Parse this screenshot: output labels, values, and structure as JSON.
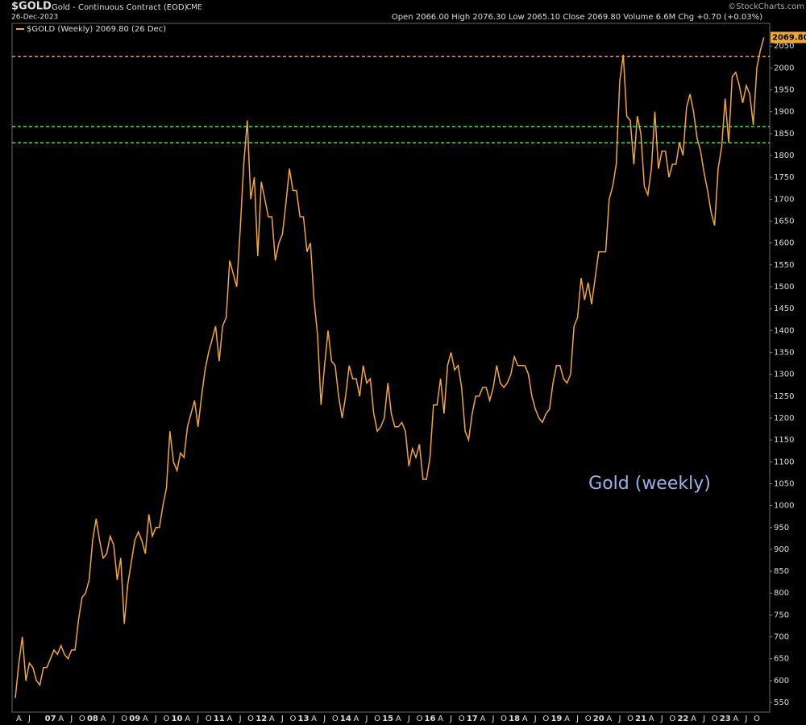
{
  "chart_data": {
    "type": "line",
    "header": {
      "symbol": "$GOLD",
      "name": "Gold - Continuous Contract (EOD)",
      "exchange": "CME",
      "date": "26-Dec-2023",
      "quote": "Open 2066.00  High 2076.30  Low 2065.10  Close 2069.80  Volume 6.6M  Chg +0.70 (+0.03%)",
      "source": "©StockCharts.com"
    },
    "legend_label": "$GOLD (Weekly) 2069.80 (26 Dec)",
    "annotation": "Gold (weekly)",
    "last_value_label": "2069.80",
    "categories": [
      null,
      "A",
      null,
      null,
      "J",
      null,
      null,
      null,
      null,
      null,
      "07",
      null,
      null,
      "A",
      null,
      null,
      "J",
      null,
      null,
      "O",
      null,
      null,
      "08",
      null,
      null,
      "A",
      null,
      null,
      "J",
      null,
      null,
      "O",
      null,
      null,
      "09",
      null,
      null,
      "A",
      null,
      null,
      "J",
      null,
      null,
      "O",
      null,
      null,
      "10",
      null,
      null,
      "A",
      null,
      null,
      "J",
      null,
      null,
      "O",
      null,
      null,
      "11",
      null,
      null,
      "A",
      null,
      null,
      "J",
      null,
      null,
      "O",
      null,
      null,
      "12",
      null,
      null,
      "A",
      null,
      null,
      "J",
      null,
      null,
      "O",
      null,
      null,
      "13",
      null,
      null,
      "A",
      null,
      null,
      "J",
      null,
      null,
      "O",
      null,
      null,
      "14",
      null,
      null,
      "A",
      null,
      null,
      "J",
      null,
      null,
      "O",
      null,
      null,
      "15",
      null,
      null,
      "A",
      null,
      null,
      "J",
      null,
      null,
      "O",
      null,
      null,
      "16",
      null,
      null,
      "A",
      null,
      null,
      "J",
      null,
      null,
      "O",
      null,
      null,
      "17",
      null,
      null,
      "A",
      null,
      null,
      "J",
      null,
      null,
      "O",
      null,
      null,
      "18",
      null,
      null,
      "A",
      null,
      null,
      "J",
      null,
      null,
      "O",
      null,
      null,
      "19",
      null,
      null,
      "A",
      null,
      null,
      "J",
      null,
      null,
      "O",
      null,
      null,
      "20",
      null,
      null,
      "A",
      null,
      null,
      "J",
      null,
      null,
      "O",
      null,
      null,
      "21",
      null,
      null,
      "A",
      null,
      null,
      "J",
      null,
      null,
      "O",
      null,
      null,
      "22",
      null,
      null,
      "A",
      null,
      null,
      "J",
      null,
      null,
      "O",
      null,
      null,
      "23",
      null,
      null,
      "A",
      null,
      null,
      "J",
      null,
      null,
      "O",
      null,
      null
    ],
    "series": [
      {
        "name": "$GOLD",
        "color": "#f0a830",
        "values": [
          560,
          640,
          700,
          600,
          640,
          630,
          600,
          590,
          630,
          630,
          650,
          670,
          660,
          680,
          660,
          650,
          670,
          670,
          740,
          790,
          800,
          830,
          920,
          970,
          920,
          880,
          890,
          930,
          910,
          830,
          880,
          730,
          820,
          870,
          920,
          940,
          920,
          890,
          980,
          930,
          950,
          950,
          1000,
          1040,
          1170,
          1100,
          1080,
          1120,
          1110,
          1180,
          1210,
          1240,
          1180,
          1250,
          1310,
          1350,
          1380,
          1410,
          1330,
          1410,
          1430,
          1560,
          1530,
          1500,
          1630,
          1780,
          1880,
          1700,
          1750,
          1570,
          1740,
          1700,
          1660,
          1660,
          1560,
          1600,
          1620,
          1690,
          1770,
          1720,
          1720,
          1660,
          1660,
          1580,
          1600,
          1470,
          1390,
          1230,
          1320,
          1400,
          1330,
          1320,
          1250,
          1200,
          1250,
          1320,
          1290,
          1290,
          1250,
          1320,
          1280,
          1290,
          1210,
          1170,
          1180,
          1200,
          1280,
          1210,
          1180,
          1180,
          1190,
          1170,
          1090,
          1130,
          1110,
          1140,
          1060,
          1060,
          1110,
          1230,
          1230,
          1290,
          1210,
          1320,
          1350,
          1310,
          1320,
          1270,
          1170,
          1150,
          1210,
          1250,
          1250,
          1270,
          1270,
          1240,
          1270,
          1320,
          1280,
          1270,
          1280,
          1300,
          1340,
          1320,
          1320,
          1320,
          1300,
          1250,
          1220,
          1200,
          1190,
          1210,
          1220,
          1280,
          1320,
          1320,
          1290,
          1280,
          1300,
          1410,
          1430,
          1520,
          1470,
          1510,
          1460,
          1520,
          1580,
          1580,
          1580,
          1700,
          1730,
          1780,
          1970,
          2030,
          1890,
          1880,
          1780,
          1890,
          1850,
          1730,
          1710,
          1770,
          1900,
          1770,
          1810,
          1810,
          1750,
          1780,
          1780,
          1830,
          1800,
          1910,
          1940,
          1900,
          1840,
          1810,
          1760,
          1720,
          1670,
          1640,
          1770,
          1820,
          1930,
          1830,
          1980,
          1990,
          1960,
          1920,
          1960,
          1940,
          1870,
          2000,
          2040,
          2069.8
        ]
      }
    ],
    "reference_lines": [
      {
        "value": 2026,
        "color": "#f08a5d"
      },
      {
        "value": 1866,
        "color": "#33ee33"
      },
      {
        "value": 1829,
        "color": "#33ee33"
      }
    ],
    "ylim": [
      528,
      2102
    ],
    "yticks": [
      550,
      600,
      650,
      700,
      750,
      800,
      850,
      900,
      950,
      1000,
      1050,
      1100,
      1150,
      1200,
      1250,
      1300,
      1350,
      1400,
      1450,
      1500,
      1550,
      1600,
      1650,
      1700,
      1750,
      1800,
      1850,
      1900,
      1950,
      2000,
      2050
    ],
    "grid": false
  }
}
